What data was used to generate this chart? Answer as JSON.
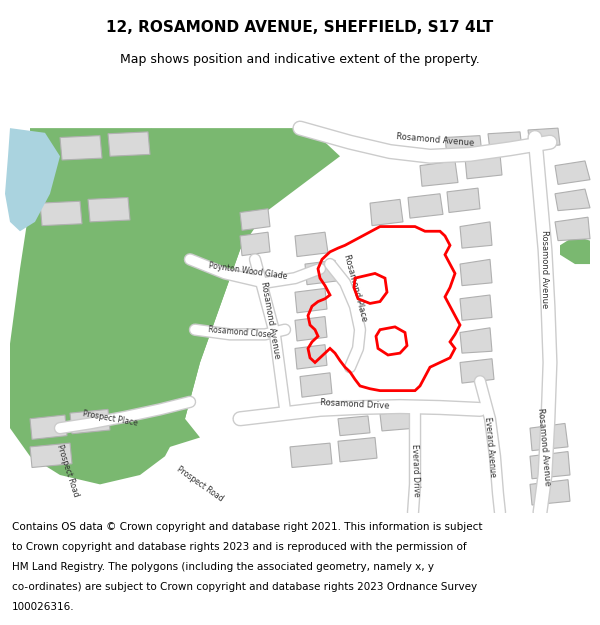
{
  "title_line1": "12, ROSAMOND AVENUE, SHEFFIELD, S17 4LT",
  "title_line2": "Map shows position and indicative extent of the property.",
  "footer_text": "Contains OS data © Crown copyright and database right 2021. This information is subject to Crown copyright and database rights 2023 and is reproduced with the permission of HM Land Registry. The polygons (including the associated geometry, namely x, y co-ordinates) are subject to Crown copyright and database rights 2023 Ordnance Survey 100026316.",
  "bg_color": "#f2efe9",
  "map_bg": "#f2efe9",
  "road_color": "#ffffff",
  "road_outline": "#cccccc",
  "green_area_color": "#7ab870",
  "water_color": "#aad3df",
  "building_color": "#d9d9d9",
  "building_outline": "#b0b0b0",
  "yellow_road_color": "#f7e09f",
  "yellow_road_outline": "#e6c860",
  "red_polygon_color": "#ff0000",
  "title_fontsize": 11,
  "subtitle_fontsize": 9,
  "footer_fontsize": 7.5
}
